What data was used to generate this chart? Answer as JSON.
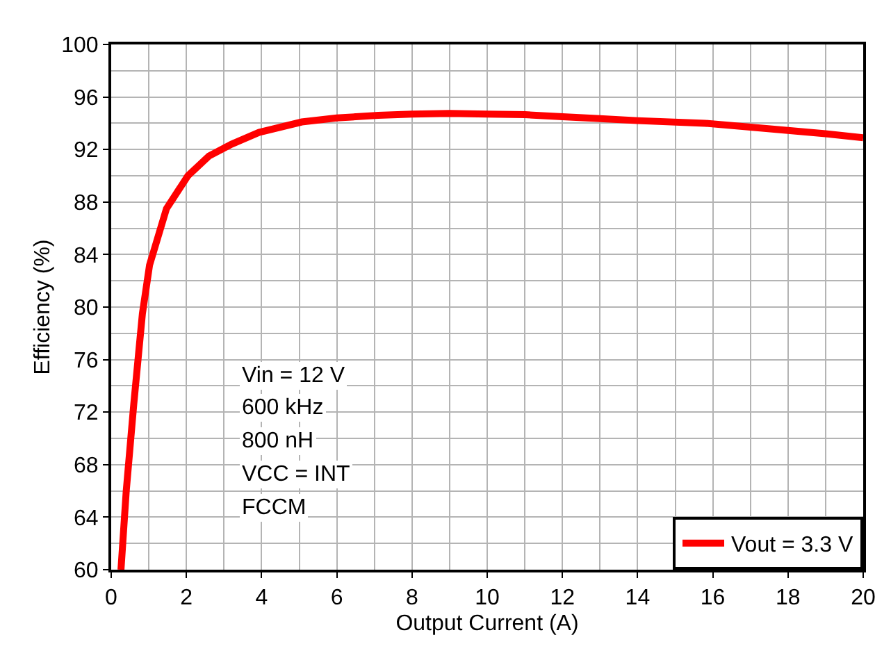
{
  "chart_data": {
    "type": "line",
    "xlabel": "Output Current (A)",
    "ylabel": "Efficiency (%)",
    "annotations": [
      "Vin = 12 V",
      "600 kHz",
      "800 nH",
      "VCC = INT",
      "FCCM"
    ],
    "xlim": [
      0,
      20
    ],
    "xticks": [
      0,
      2,
      4,
      6,
      8,
      10,
      12,
      14,
      16,
      18,
      20
    ],
    "ylim": [
      60,
      100
    ],
    "yticks": [
      60,
      64,
      68,
      72,
      76,
      80,
      84,
      88,
      92,
      96,
      100
    ],
    "grid": true,
    "legend": "bottom right",
    "marker": "none",
    "line_style": "solid",
    "series": [
      {
        "name": "Vout = 3.3 V",
        "color": "#ff0000",
        "x": [
          0.26,
          0.4,
          0.6,
          0.83,
          1.02,
          1.47,
          2.04,
          2.6,
          3.2,
          3.93,
          5.07,
          6,
          7.1,
          8,
          9,
          10,
          11,
          12,
          13,
          14,
          15.8,
          17,
          18,
          19,
          20
        ],
        "values": [
          60,
          66,
          72.6,
          79.5,
          83.2,
          87.5,
          90,
          91.5,
          92.4,
          93.3,
          94.1,
          94.4,
          94.6,
          94.7,
          94.75,
          94.7,
          94.65,
          94.5,
          94.35,
          94.2,
          94,
          93.7,
          93.45,
          93.2,
          92.9
        ]
      }
    ]
  }
}
